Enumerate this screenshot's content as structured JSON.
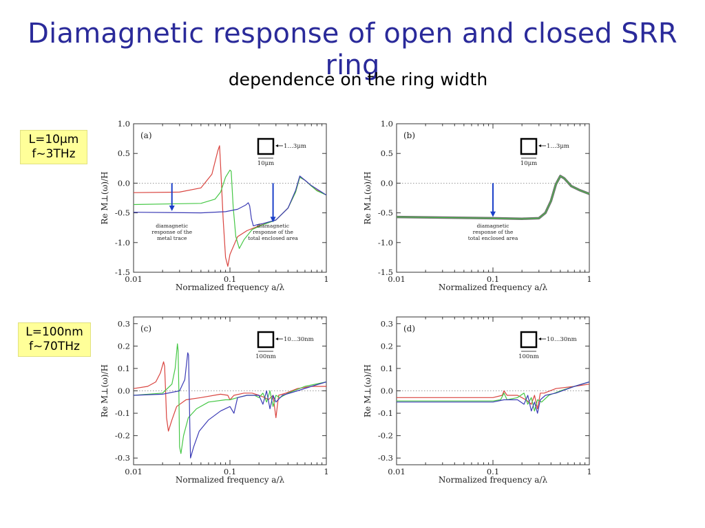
{
  "title": "Diamagnetic response of open and closed SRR ring",
  "subtitle": "dependence on the ring width",
  "labels": [
    {
      "line1": "L=10μm",
      "line2": "f~3THz"
    },
    {
      "line1": "L=100nm",
      "line2": "f~70THz"
    }
  ],
  "colors": {
    "red": "#d9433e",
    "green": "#44c744",
    "blue": "#3a3ab5",
    "arrow": "#1a3fc9",
    "gray": "#6e6e6e"
  },
  "chart_data": [
    {
      "type": "line",
      "panel_label": "(a)",
      "xscale": "log",
      "xlim": [
        0.01,
        1
      ],
      "ylim": [
        -1.5,
        1.0
      ],
      "x_ticks": [
        "0.01",
        "0.1",
        "1"
      ],
      "y_ticks": [
        "1.0",
        "0.5",
        "0.0",
        "-0.5",
        "-1.0",
        "-1.5"
      ],
      "xlabel": "Normalized frequency a/λ",
      "ylabel": "Re M⊥(ω)/H",
      "inset": {
        "width_label": "1…3μm",
        "size_label": "10μm"
      },
      "annotations": [
        {
          "x": 0.025,
          "y_from": -0.0,
          "y_to": -0.47,
          "lines": [
            "diamagnetic",
            "response of the",
            "metal trace"
          ]
        },
        {
          "x": 0.28,
          "y_from": -0.0,
          "y_to": -0.66,
          "lines": [
            "diamagnetic",
            "response of the",
            "total enclosed area"
          ]
        }
      ],
      "series": [
        {
          "color": "red",
          "points": [
            [
              0.01,
              -0.16
            ],
            [
              0.03,
              -0.15
            ],
            [
              0.05,
              -0.08
            ],
            [
              0.065,
              0.15
            ],
            [
              0.075,
              0.55
            ],
            [
              0.078,
              0.63
            ],
            [
              0.08,
              0.3
            ],
            [
              0.085,
              -0.6
            ],
            [
              0.09,
              -1.25
            ],
            [
              0.095,
              -1.4
            ],
            [
              0.1,
              -1.2
            ],
            [
              0.12,
              -0.9
            ],
            [
              0.15,
              -0.8
            ],
            [
              0.2,
              -0.72
            ],
            [
              0.3,
              -0.62
            ],
            [
              0.4,
              -0.42
            ],
            [
              0.48,
              -0.15
            ],
            [
              0.53,
              0.1
            ],
            [
              0.6,
              0.05
            ],
            [
              0.7,
              -0.05
            ],
            [
              0.8,
              -0.12
            ],
            [
              1,
              -0.2
            ]
          ]
        },
        {
          "color": "green",
          "points": [
            [
              0.01,
              -0.36
            ],
            [
              0.05,
              -0.34
            ],
            [
              0.07,
              -0.27
            ],
            [
              0.08,
              -0.15
            ],
            [
              0.09,
              0.1
            ],
            [
              0.1,
              0.22
            ],
            [
              0.103,
              0.2
            ],
            [
              0.108,
              -0.4
            ],
            [
              0.115,
              -0.9
            ],
            [
              0.125,
              -1.1
            ],
            [
              0.14,
              -0.95
            ],
            [
              0.17,
              -0.78
            ],
            [
              0.22,
              -0.7
            ],
            [
              0.3,
              -0.62
            ],
            [
              0.4,
              -0.42
            ],
            [
              0.48,
              -0.15
            ],
            [
              0.53,
              0.1
            ],
            [
              0.6,
              0.05
            ],
            [
              0.7,
              -0.05
            ],
            [
              0.8,
              -0.13
            ],
            [
              1,
              -0.2
            ]
          ]
        },
        {
          "color": "blue",
          "points": [
            [
              0.01,
              -0.49
            ],
            [
              0.05,
              -0.5
            ],
            [
              0.09,
              -0.48
            ],
            [
              0.12,
              -0.44
            ],
            [
              0.145,
              -0.37
            ],
            [
              0.155,
              -0.33
            ],
            [
              0.16,
              -0.38
            ],
            [
              0.167,
              -0.6
            ],
            [
              0.175,
              -0.72
            ],
            [
              0.19,
              -0.7
            ],
            [
              0.22,
              -0.68
            ],
            [
              0.3,
              -0.62
            ],
            [
              0.4,
              -0.42
            ],
            [
              0.48,
              -0.12
            ],
            [
              0.53,
              0.12
            ],
            [
              0.6,
              0.05
            ],
            [
              0.7,
              -0.04
            ],
            [
              0.8,
              -0.1
            ],
            [
              1,
              -0.2
            ]
          ]
        }
      ]
    },
    {
      "type": "line",
      "panel_label": "(b)",
      "xscale": "log",
      "xlim": [
        0.01,
        1
      ],
      "ylim": [
        -1.5,
        1.0
      ],
      "x_ticks": [
        "0.01",
        "0.1",
        "1"
      ],
      "y_ticks": [
        "1.0",
        "0.5",
        "0.0",
        "-0.5",
        "-1.0",
        "-1.5"
      ],
      "xlabel": "Normalized frequency a/λ",
      "ylabel": "Re M⊥(ω)/H",
      "inset": {
        "width_label": "1…3μm",
        "size_label": "10μm"
      },
      "annotations": [
        {
          "x": 0.1,
          "y_from": -0.0,
          "y_to": -0.57,
          "lines": [
            "diamagnetic",
            "response of the",
            "total enclosed area"
          ]
        }
      ],
      "series": [
        {
          "color": "gray",
          "width": 3.5,
          "points": [
            [
              0.01,
              -0.57
            ],
            [
              0.1,
              -0.59
            ],
            [
              0.2,
              -0.6
            ],
            [
              0.3,
              -0.59
            ],
            [
              0.35,
              -0.5
            ],
            [
              0.4,
              -0.3
            ],
            [
              0.45,
              -0.02
            ],
            [
              0.5,
              0.12
            ],
            [
              0.55,
              0.08
            ],
            [
              0.65,
              -0.05
            ],
            [
              0.8,
              -0.12
            ],
            [
              1,
              -0.18
            ]
          ]
        },
        {
          "color": "green",
          "width": 1,
          "points": [
            [
              0.01,
              -0.57
            ],
            [
              0.1,
              -0.59
            ],
            [
              0.2,
              -0.6
            ],
            [
              0.3,
              -0.59
            ],
            [
              0.35,
              -0.5
            ],
            [
              0.4,
              -0.3
            ],
            [
              0.45,
              -0.02
            ],
            [
              0.5,
              0.12
            ],
            [
              0.55,
              0.08
            ],
            [
              0.65,
              -0.05
            ],
            [
              0.8,
              -0.12
            ],
            [
              1,
              -0.18
            ]
          ]
        }
      ]
    },
    {
      "type": "line",
      "panel_label": "(c)",
      "xscale": "log",
      "xlim": [
        0.01,
        1
      ],
      "ylim": [
        -0.33,
        0.33
      ],
      "x_ticks": [
        "0.01",
        "0.1",
        "1"
      ],
      "y_ticks": [
        "0.3",
        "0.2",
        "0.1",
        "0.0",
        "-0.1",
        "-0.2",
        "-0.3"
      ],
      "xlabel": "Normalized frequency a/λ",
      "ylabel": "Re M⊥(ω)/H",
      "inset": {
        "width_label": "10…30nm",
        "size_label": "100nm"
      },
      "series": [
        {
          "color": "red",
          "points": [
            [
              0.01,
              0.01
            ],
            [
              0.014,
              0.02
            ],
            [
              0.017,
              0.04
            ],
            [
              0.019,
              0.08
            ],
            [
              0.0205,
              0.13
            ],
            [
              0.021,
              0.11
            ],
            [
              0.0215,
              0.0
            ],
            [
              0.022,
              -0.12
            ],
            [
              0.023,
              -0.18
            ],
            [
              0.025,
              -0.13
            ],
            [
              0.028,
              -0.07
            ],
            [
              0.035,
              -0.04
            ],
            [
              0.05,
              -0.03
            ],
            [
              0.08,
              -0.015
            ],
            [
              0.095,
              -0.02
            ],
            [
              0.1,
              -0.04
            ],
            [
              0.11,
              -0.02
            ],
            [
              0.14,
              -0.01
            ],
            [
              0.17,
              -0.01
            ],
            [
              0.2,
              -0.02
            ],
            [
              0.23,
              -0.03
            ],
            [
              0.25,
              -0.04
            ],
            [
              0.28,
              -0.02
            ],
            [
              0.3,
              -0.12
            ],
            [
              0.32,
              -0.02
            ],
            [
              0.38,
              -0.01
            ],
            [
              0.5,
              0.01
            ],
            [
              0.7,
              0.02
            ],
            [
              1,
              0.02
            ]
          ]
        },
        {
          "color": "green",
          "points": [
            [
              0.01,
              -0.02
            ],
            [
              0.02,
              -0.01
            ],
            [
              0.025,
              0.03
            ],
            [
              0.027,
              0.1
            ],
            [
              0.0285,
              0.21
            ],
            [
              0.029,
              0.18
            ],
            [
              0.0295,
              0.0
            ],
            [
              0.03,
              -0.25
            ],
            [
              0.031,
              -0.28
            ],
            [
              0.033,
              -0.2
            ],
            [
              0.037,
              -0.12
            ],
            [
              0.045,
              -0.08
            ],
            [
              0.06,
              -0.05
            ],
            [
              0.09,
              -0.04
            ],
            [
              0.1,
              -0.04
            ],
            [
              0.12,
              -0.03
            ],
            [
              0.15,
              -0.02
            ],
            [
              0.18,
              -0.02
            ],
            [
              0.2,
              -0.03
            ],
            [
              0.22,
              -0.01
            ],
            [
              0.24,
              -0.05
            ],
            [
              0.26,
              0.0
            ],
            [
              0.28,
              -0.07
            ],
            [
              0.3,
              -0.02
            ],
            [
              0.33,
              -0.03
            ],
            [
              0.4,
              -0.01
            ],
            [
              0.6,
              0.02
            ],
            [
              1,
              0.04
            ]
          ]
        },
        {
          "color": "blue",
          "points": [
            [
              0.01,
              -0.02
            ],
            [
              0.02,
              -0.015
            ],
            [
              0.03,
              0.0
            ],
            [
              0.034,
              0.05
            ],
            [
              0.0365,
              0.17
            ],
            [
              0.0372,
              0.16
            ],
            [
              0.0378,
              0.0
            ],
            [
              0.0385,
              -0.2
            ],
            [
              0.039,
              -0.3
            ],
            [
              0.042,
              -0.25
            ],
            [
              0.048,
              -0.18
            ],
            [
              0.06,
              -0.13
            ],
            [
              0.08,
              -0.09
            ],
            [
              0.1,
              -0.07
            ],
            [
              0.11,
              -0.1
            ],
            [
              0.12,
              -0.03
            ],
            [
              0.15,
              -0.02
            ],
            [
              0.2,
              -0.02
            ],
            [
              0.22,
              -0.06
            ],
            [
              0.24,
              0.0
            ],
            [
              0.26,
              -0.08
            ],
            [
              0.28,
              -0.02
            ],
            [
              0.3,
              -0.05
            ],
            [
              0.35,
              -0.02
            ],
            [
              0.5,
              0.0
            ],
            [
              0.7,
              0.02
            ],
            [
              1,
              0.04
            ]
          ]
        }
      ]
    },
    {
      "type": "line",
      "panel_label": "(d)",
      "xscale": "log",
      "xlim": [
        0.01,
        1
      ],
      "ylim": [
        -0.33,
        0.33
      ],
      "x_ticks": [
        "0.01",
        "0.1",
        "1"
      ],
      "y_ticks": [
        "0.3",
        "0.2",
        "0.1",
        "0.0",
        "-0.1",
        "-0.2",
        "-0.3"
      ],
      "xlabel": "Normalized frequency a/λ",
      "ylabel": "Re M⊥(ω)/H",
      "inset": {
        "width_label": "10…30nm",
        "size_label": "100nm"
      },
      "series": [
        {
          "color": "red",
          "points": [
            [
              0.01,
              -0.03
            ],
            [
              0.05,
              -0.03
            ],
            [
              0.1,
              -0.03
            ],
            [
              0.125,
              -0.02
            ],
            [
              0.13,
              0.0
            ],
            [
              0.14,
              -0.02
            ],
            [
              0.18,
              -0.02
            ],
            [
              0.22,
              -0.04
            ],
            [
              0.25,
              -0.06
            ],
            [
              0.27,
              -0.02
            ],
            [
              0.29,
              -0.08
            ],
            [
              0.31,
              -0.01
            ],
            [
              0.34,
              -0.01
            ],
            [
              0.45,
              0.01
            ],
            [
              0.7,
              0.02
            ],
            [
              1,
              0.03
            ]
          ]
        },
        {
          "color": "green",
          "points": [
            [
              0.01,
              -0.045
            ],
            [
              0.05,
              -0.045
            ],
            [
              0.1,
              -0.045
            ],
            [
              0.12,
              -0.04
            ],
            [
              0.13,
              -0.01
            ],
            [
              0.14,
              -0.04
            ],
            [
              0.18,
              -0.03
            ],
            [
              0.21,
              -0.01
            ],
            [
              0.23,
              -0.06
            ],
            [
              0.25,
              -0.03
            ],
            [
              0.27,
              -0.09
            ],
            [
              0.29,
              -0.04
            ],
            [
              0.32,
              -0.05
            ],
            [
              0.38,
              -0.02
            ],
            [
              0.5,
              0.0
            ],
            [
              0.7,
              0.02
            ],
            [
              1,
              0.04
            ]
          ]
        },
        {
          "color": "blue",
          "points": [
            [
              0.01,
              -0.05
            ],
            [
              0.05,
              -0.05
            ],
            [
              0.1,
              -0.05
            ],
            [
              0.13,
              -0.04
            ],
            [
              0.18,
              -0.04
            ],
            [
              0.21,
              -0.06
            ],
            [
              0.23,
              -0.02
            ],
            [
              0.25,
              -0.09
            ],
            [
              0.27,
              -0.05
            ],
            [
              0.29,
              -0.1
            ],
            [
              0.31,
              -0.04
            ],
            [
              0.35,
              -0.02
            ],
            [
              0.45,
              -0.01
            ],
            [
              0.7,
              0.02
            ],
            [
              1,
              0.04
            ]
          ]
        }
      ]
    }
  ]
}
